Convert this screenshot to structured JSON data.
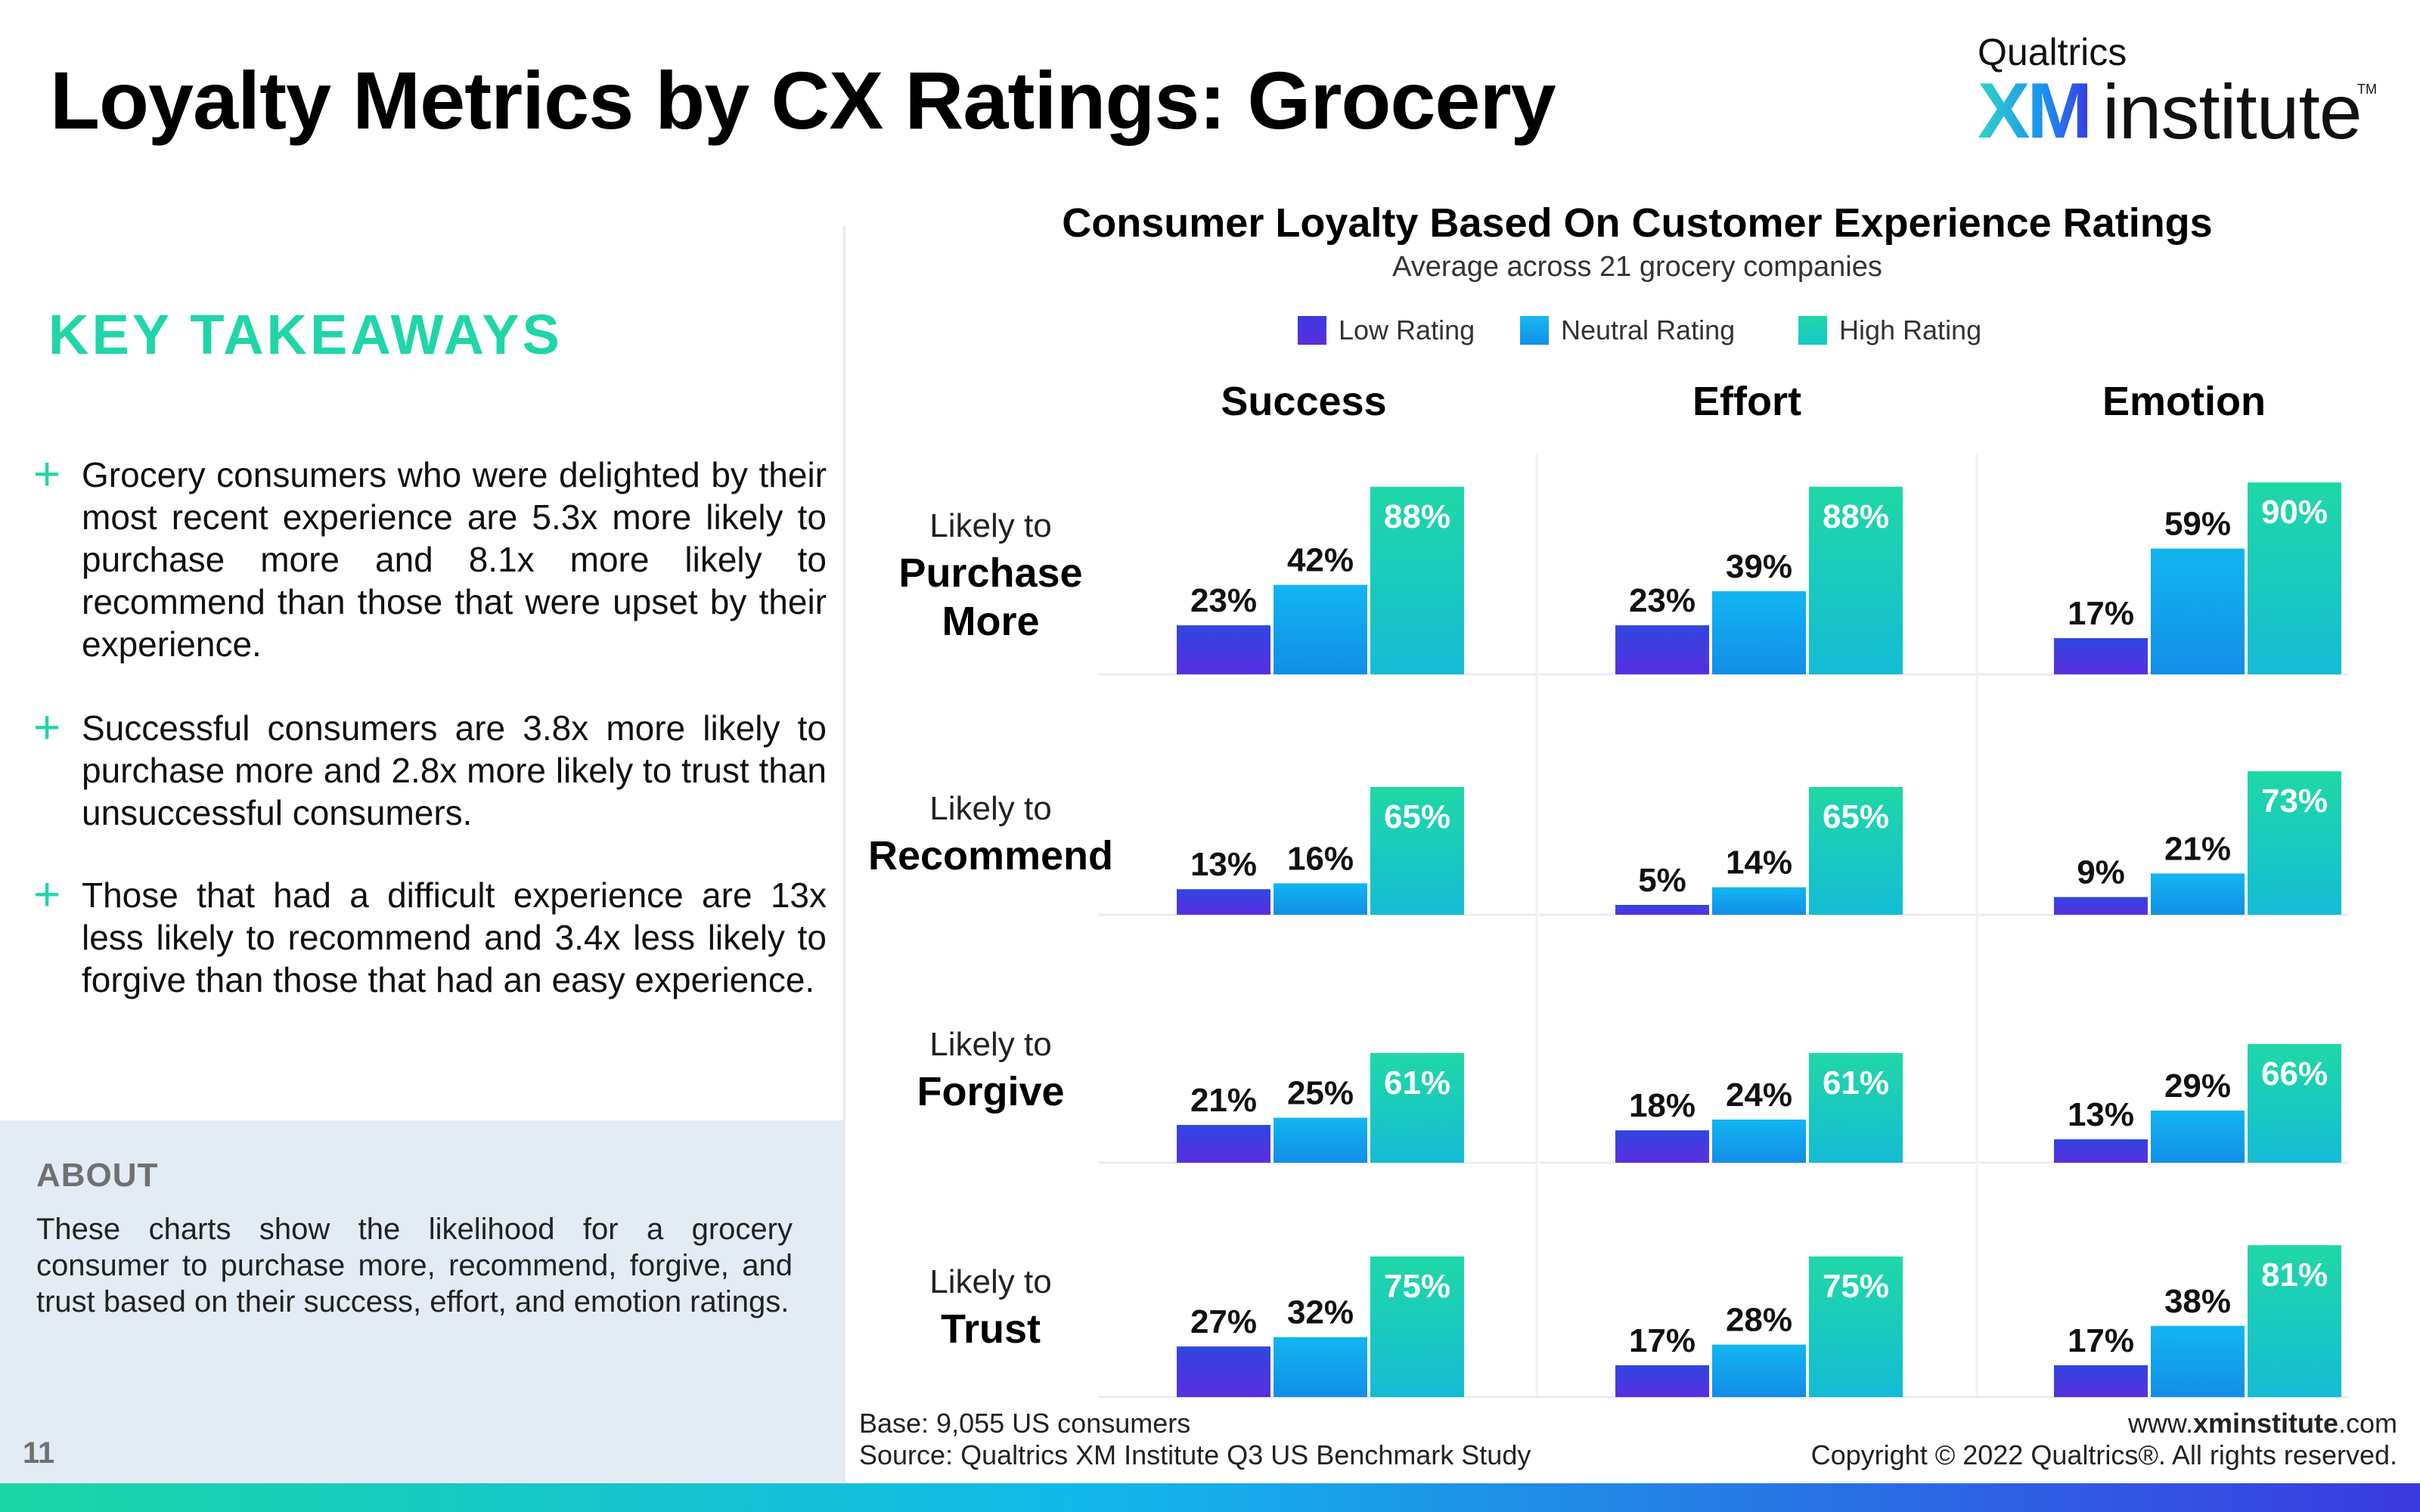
{
  "page": {
    "title": "Loyalty Metrics by CX Ratings: Grocery",
    "page_number": "11"
  },
  "logo": {
    "top": "Qualtrics",
    "xm": "XM",
    "institute": "institute",
    "tm": "TM"
  },
  "takeaways": {
    "title": "KEY TAKEAWAYS",
    "items": [
      "Grocery consumers who were delighted by their most recent experience are 5.3x more likely to purchase more and 8.1x more likely to recommend than those that were upset by their experience.",
      "Successful consumers are 3.8x more likely to purchase more and 2.8x more likely to trust than unsuccessful consumers.",
      "Those that had a difficult experience are 13x less likely to recommend and 3.4x less likely to forgive than those that had an easy experience."
    ]
  },
  "about": {
    "title": "ABOUT",
    "text": "These charts show the likelihood for a grocery consumer to purchase more, recommend, forgive, and trust based on their success, effort, and emotion ratings."
  },
  "footer": {
    "base": "Base: 9,055 US consumers",
    "source": "Source: Qualtrics XM Institute Q3 US Benchmark Study",
    "url_prefix": "www.",
    "url_bold": "xminstitute",
    "url_suffix": ".com",
    "copyright": "Copyright © 2022 Qualtrics®. All rights reserved."
  },
  "colors": {
    "low": "#4a36e0",
    "neutral": "#12a6ea",
    "high": "#1fd6a8",
    "accent": "#1fd6a8"
  },
  "chart_data": {
    "type": "bar",
    "title": "Consumer Loyalty Based On Customer Experience Ratings",
    "subtitle": "Average across 21 grocery companies",
    "legend": [
      "Low Rating",
      "Neutral Rating",
      "High Rating"
    ],
    "legend_position": "top-center",
    "columns": [
      "Success",
      "Effort",
      "Emotion"
    ],
    "rows": [
      {
        "pre": "Likely to",
        "label": "Purchase More",
        "label_lines": [
          "Purchase",
          "More"
        ]
      },
      {
        "pre": "Likely to",
        "label": "Recommend",
        "label_lines": [
          "Recommend"
        ]
      },
      {
        "pre": "Likely to",
        "label": "Forgive",
        "label_lines": [
          "Forgive"
        ]
      },
      {
        "pre": "Likely to",
        "label": "Trust",
        "label_lines": [
          "Trust"
        ]
      }
    ],
    "values": [
      [
        [
          23,
          42,
          88
        ],
        [
          23,
          39,
          88
        ],
        [
          17,
          59,
          90
        ]
      ],
      [
        [
          13,
          16,
          65
        ],
        [
          5,
          14,
          65
        ],
        [
          9,
          21,
          73
        ]
      ],
      [
        [
          21,
          25,
          61
        ],
        [
          18,
          24,
          61
        ],
        [
          13,
          29,
          66
        ]
      ],
      [
        [
          27,
          32,
          75
        ],
        [
          17,
          28,
          75
        ],
        [
          17,
          38,
          81
        ]
      ]
    ],
    "value_format": "{v}%",
    "ylim": [
      0,
      100
    ],
    "grid": true
  }
}
